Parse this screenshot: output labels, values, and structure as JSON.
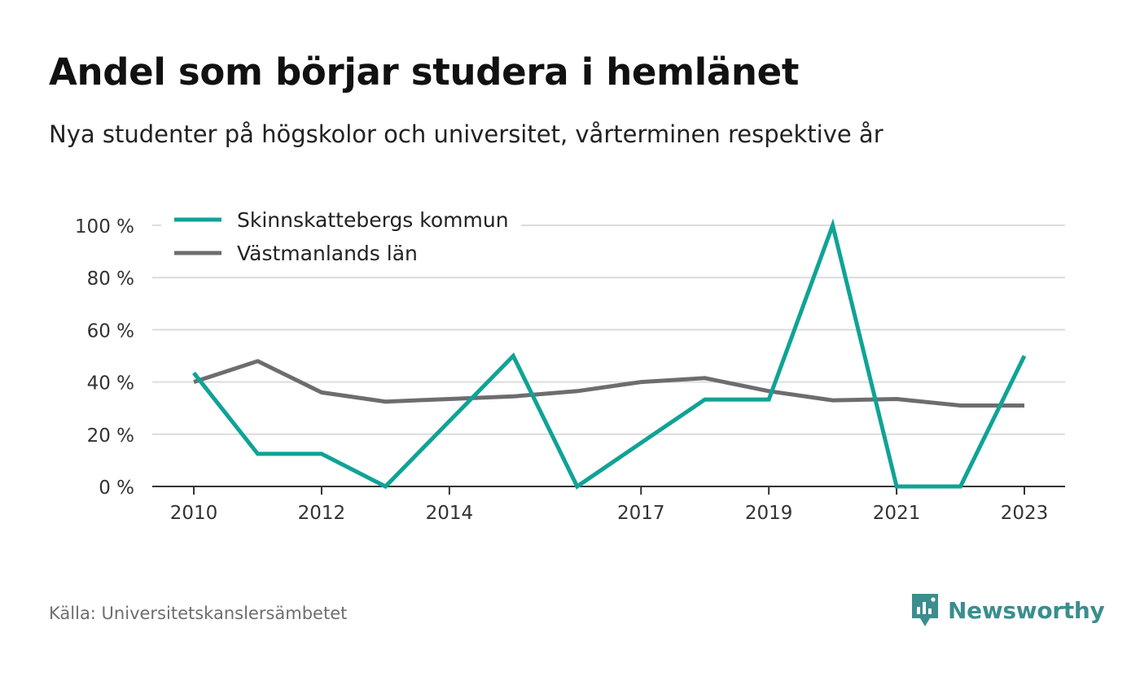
{
  "title": "Andel som börjar studera i hemlänet",
  "subtitle": "Nya studenter på högskolor och universitet, vårterminen respektive år",
  "source": "Källa: Universitetskanslersämbetet",
  "brand": {
    "name": "Newsworthy",
    "icon": "newsworthy-logo-icon",
    "color": "#3c8d8e"
  },
  "chart_data": {
    "type": "line",
    "x": [
      2010,
      2011,
      2012,
      2013,
      2014,
      2015,
      2016,
      2017,
      2018,
      2019,
      2020,
      2021,
      2022,
      2023
    ],
    "x_tick_labels": [
      "2010",
      "2012",
      "2014",
      "2017",
      "2019",
      "2021",
      "2023"
    ],
    "y_tick_labels": [
      "0 %",
      "20 %",
      "40 %",
      "60 %",
      "80 %",
      "100 %"
    ],
    "ylim": [
      0,
      100
    ],
    "grid": true,
    "legend_position": "top-left",
    "series": [
      {
        "name": "Skinnskattebergs kommun",
        "color": "#0fa396",
        "values": [
          43.5,
          12.5,
          12.5,
          0,
          25,
          50,
          0,
          16.7,
          33.3,
          33.3,
          100,
          0,
          0,
          50
        ]
      },
      {
        "name": "Västmanlands län",
        "color": "#6d6d70",
        "values": [
          40,
          48,
          36,
          32.5,
          33.5,
          34.5,
          36.5,
          40,
          41.5,
          36.5,
          33,
          33.5,
          31,
          31
        ]
      }
    ]
  }
}
